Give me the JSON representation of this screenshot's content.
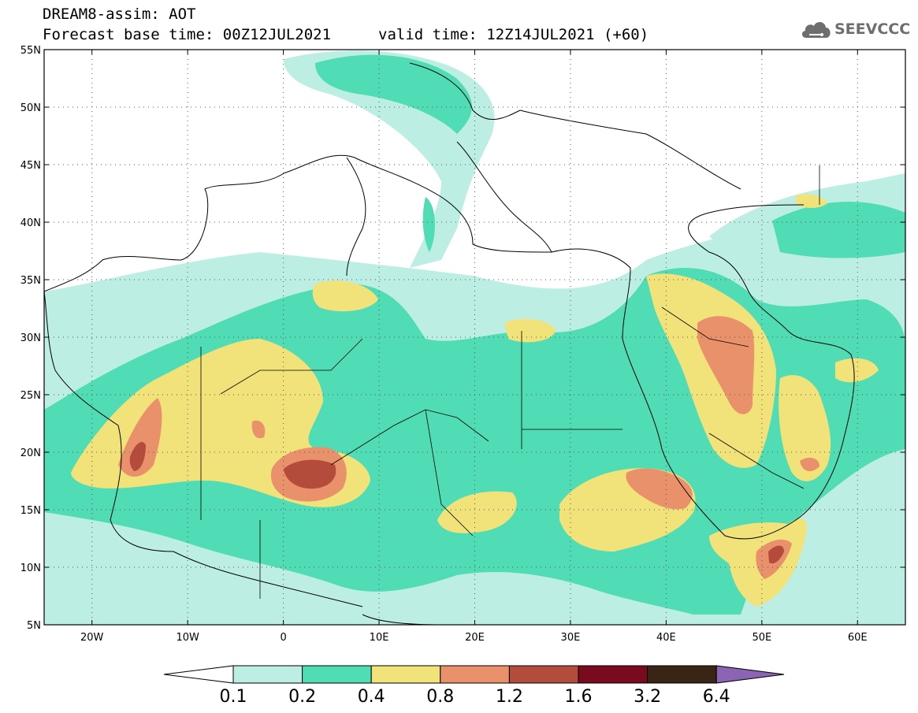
{
  "header": {
    "model_line": "DREAM8-assim: AOT",
    "base_time": "Forecast base time: 00Z12JUL2021",
    "valid_time": "valid time: 12Z14JUL2021 (+60)",
    "logo_text": "SEEVCCC"
  },
  "map": {
    "lon_range": [
      -25,
      65
    ],
    "lat_range": [
      5,
      55
    ],
    "lon_ticks": [
      {
        "value": -20,
        "label": "20W"
      },
      {
        "value": -10,
        "label": "10W"
      },
      {
        "value": 0,
        "label": "0"
      },
      {
        "value": 10,
        "label": "10E"
      },
      {
        "value": 20,
        "label": "20E"
      },
      {
        "value": 30,
        "label": "30E"
      },
      {
        "value": 40,
        "label": "40E"
      },
      {
        "value": 50,
        "label": "50E"
      },
      {
        "value": 60,
        "label": "60E"
      }
    ],
    "lat_ticks": [
      {
        "value": 55,
        "label": "55N"
      },
      {
        "value": 50,
        "label": "50N"
      },
      {
        "value": 45,
        "label": "45N"
      },
      {
        "value": 40,
        "label": "40N"
      },
      {
        "value": 35,
        "label": "35N"
      },
      {
        "value": 30,
        "label": "30N"
      },
      {
        "value": 25,
        "label": "25N"
      },
      {
        "value": 20,
        "label": "20N"
      },
      {
        "value": 15,
        "label": "15N"
      },
      {
        "value": 10,
        "label": "10N"
      },
      {
        "value": 5,
        "label": "5N"
      }
    ],
    "grid": "dotted",
    "field_levels": [
      {
        "level": 0.1,
        "color": "#bdeee4"
      },
      {
        "level": 0.2,
        "color": "#50dcb4"
      },
      {
        "level": 0.4,
        "color": "#f2e27a"
      },
      {
        "level": 0.8,
        "color": "#e9916a"
      },
      {
        "level": 1.2,
        "color": "#b44c3c"
      }
    ]
  },
  "colorbar": {
    "labels": [
      "0.1",
      "0.2",
      "0.4",
      "0.8",
      "1.2",
      "1.6",
      "3.2",
      "6.4"
    ],
    "colors": [
      "#bdeee4",
      "#50dcb4",
      "#f2e27a",
      "#e9916a",
      "#b44c3c",
      "#7a0a1e",
      "#3a2414"
    ],
    "low_end_color": "#ffffff",
    "high_end_color": "#8c64b4"
  }
}
